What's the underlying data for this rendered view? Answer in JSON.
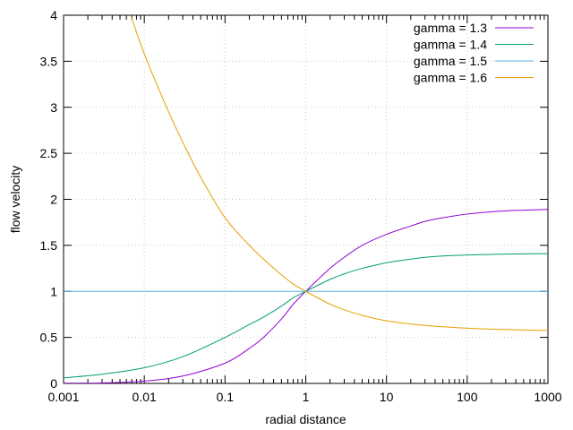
{
  "chart_data": {
    "type": "line",
    "title": "",
    "xlabel": "radial distance",
    "ylabel": "flow velocity",
    "xscale": "log",
    "xlim": [
      0.001,
      1000
    ],
    "ylim": [
      0,
      4
    ],
    "xticks": [
      "0.001",
      "0.01",
      "0.1",
      "1",
      "10",
      "100",
      "1000"
    ],
    "yticks": [
      "0",
      "0.5",
      "1",
      "1.5",
      "2",
      "2.5",
      "3",
      "3.5",
      "4"
    ],
    "grid": true,
    "legend_position": "top-right",
    "series": [
      {
        "name": "gamma = 1.3",
        "color": "#9400d3",
        "x": [
          0.001,
          0.003,
          0.01,
          0.03,
          0.1,
          0.2,
          0.3,
          0.5,
          0.7,
          1,
          2,
          3,
          5,
          10,
          20,
          30,
          50,
          100,
          200,
          300,
          500,
          1000
        ],
        "y": [
          0.002,
          0.005,
          0.025,
          0.08,
          0.22,
          0.38,
          0.5,
          0.7,
          0.86,
          1.0,
          1.25,
          1.37,
          1.5,
          1.62,
          1.71,
          1.76,
          1.8,
          1.84,
          1.865,
          1.875,
          1.882,
          1.89
        ]
      },
      {
        "name": "gamma = 1.4",
        "color": "#009e73",
        "x": [
          0.001,
          0.003,
          0.01,
          0.03,
          0.1,
          0.2,
          0.3,
          0.5,
          0.7,
          1,
          2,
          3,
          5,
          10,
          20,
          30,
          50,
          100,
          200,
          300,
          500,
          1000
        ],
        "y": [
          0.06,
          0.1,
          0.17,
          0.29,
          0.5,
          0.64,
          0.72,
          0.84,
          0.93,
          1.0,
          1.13,
          1.19,
          1.25,
          1.31,
          1.35,
          1.37,
          1.385,
          1.395,
          1.402,
          1.405,
          1.408,
          1.41
        ]
      },
      {
        "name": "gamma = 1.5",
        "color": "#56b4e9",
        "x": [
          0.001,
          1000
        ],
        "y": [
          1.0,
          1.0
        ]
      },
      {
        "name": "gamma = 1.6",
        "color": "#e69f00",
        "x": [
          0.0068,
          0.01,
          0.02,
          0.03,
          0.05,
          0.1,
          0.2,
          0.3,
          0.5,
          0.7,
          1,
          2,
          3,
          5,
          10,
          20,
          30,
          50,
          100,
          200,
          300,
          500,
          1000
        ],
        "y": [
          4.0,
          3.58,
          2.95,
          2.62,
          2.24,
          1.8,
          1.5,
          1.35,
          1.18,
          1.08,
          1.0,
          0.86,
          0.8,
          0.74,
          0.68,
          0.645,
          0.63,
          0.615,
          0.6,
          0.59,
          0.585,
          0.58,
          0.575
        ]
      }
    ]
  }
}
